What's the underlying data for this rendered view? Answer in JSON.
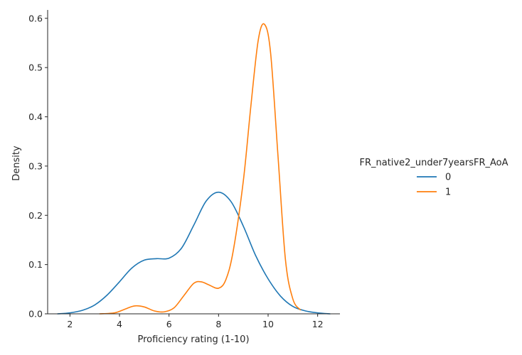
{
  "chart_data": {
    "type": "line",
    "title": "",
    "xlabel": "Proficiency rating (1-10)",
    "ylabel": "Density",
    "xlim": [
      1.1,
      12.9
    ],
    "ylim": [
      0.0,
      0.617
    ],
    "xticks": [
      2,
      4,
      6,
      8,
      10,
      12
    ],
    "yticks": [
      0.0,
      0.1,
      0.2,
      0.3,
      0.4,
      0.5,
      0.6
    ],
    "xtick_labels": [
      "2",
      "4",
      "6",
      "8",
      "10",
      "12"
    ],
    "ytick_labels": [
      "0.0",
      "0.1",
      "0.2",
      "0.3",
      "0.4",
      "0.5",
      "0.6"
    ],
    "grid": false,
    "legend": {
      "title": "FR_native2_under7yearsFR_AoA",
      "placement": "right"
    },
    "series": [
      {
        "name": "0",
        "color": "#1f77b4",
        "x": [
          1.5,
          2.0,
          2.5,
          3.0,
          3.5,
          4.0,
          4.5,
          5.0,
          5.5,
          6.0,
          6.5,
          7.0,
          7.5,
          8.0,
          8.5,
          9.0,
          9.5,
          10.0,
          10.5,
          11.0,
          11.5,
          12.0,
          12.5
        ],
        "y": [
          0.0,
          0.002,
          0.007,
          0.018,
          0.038,
          0.065,
          0.093,
          0.109,
          0.112,
          0.113,
          0.133,
          0.18,
          0.229,
          0.247,
          0.228,
          0.178,
          0.118,
          0.071,
          0.036,
          0.015,
          0.006,
          0.002,
          0.0
        ]
      },
      {
        "name": "1",
        "color": "#ff7f0e",
        "x": [
          3.2,
          3.8,
          4.2,
          4.6,
          5.0,
          5.4,
          5.8,
          6.2,
          6.6,
          7.0,
          7.3,
          7.6,
          8.0,
          8.3,
          8.6,
          9.0,
          9.3,
          9.6,
          9.85,
          10.1,
          10.4,
          10.7,
          11.0,
          11.3
        ],
        "y": [
          0.0,
          0.002,
          0.009,
          0.016,
          0.014,
          0.006,
          0.004,
          0.012,
          0.037,
          0.062,
          0.065,
          0.059,
          0.052,
          0.07,
          0.13,
          0.27,
          0.42,
          0.555,
          0.588,
          0.53,
          0.32,
          0.11,
          0.03,
          0.008
        ]
      }
    ]
  }
}
